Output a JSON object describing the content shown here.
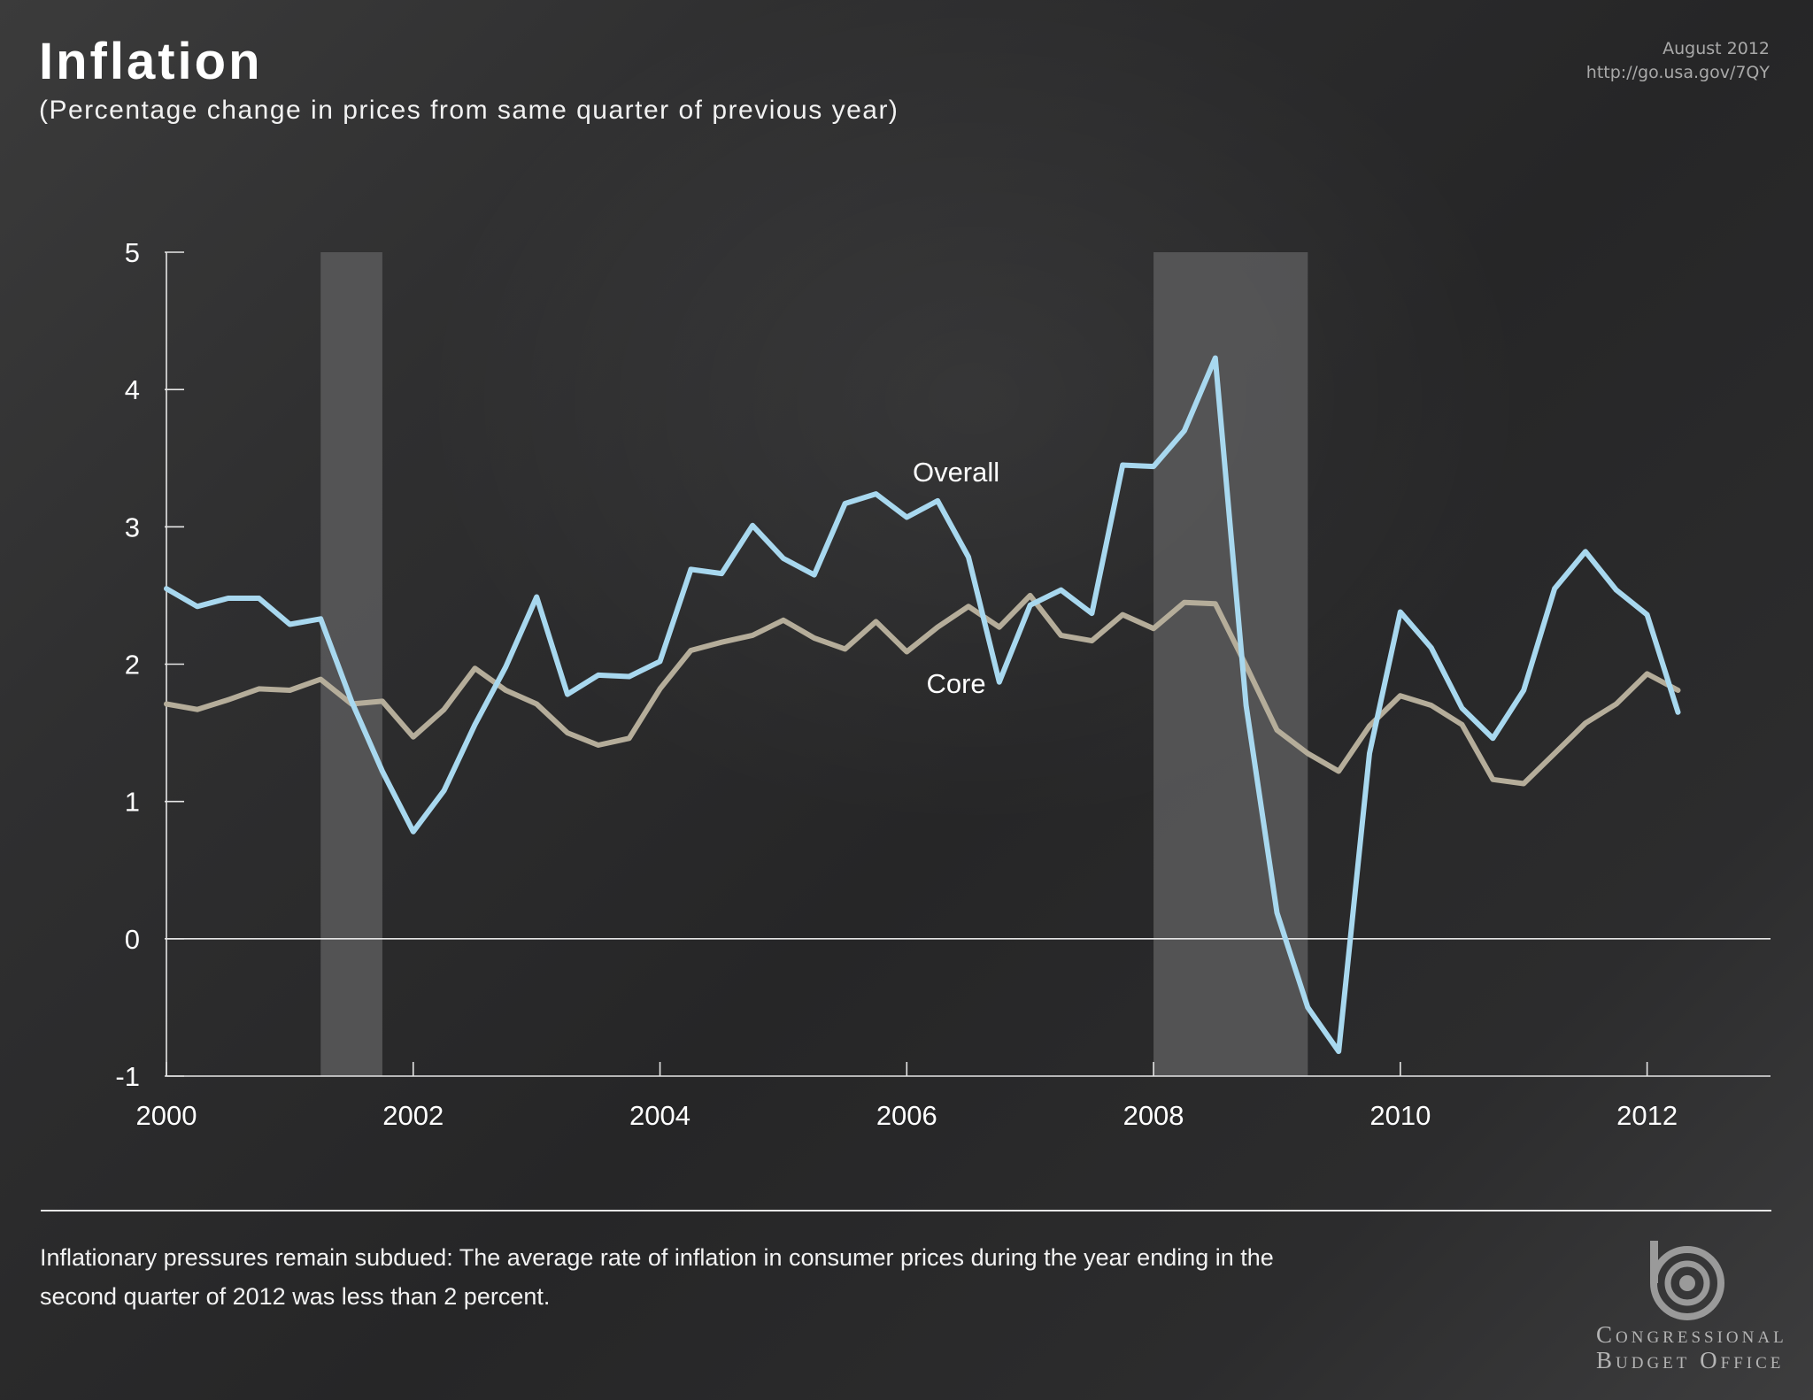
{
  "header": {
    "title": "Inflation",
    "subtitle": "(Percentage change in prices from same quarter of previous year)",
    "date": "August 2012",
    "url": "http://go.usa.gov/7QY"
  },
  "footer": {
    "caption_line1": "Inflationary pressures remain subdued: The average rate of inflation in consumer prices during the year ending in the",
    "caption_line2": "second quarter of 2012 was less than 2 percent.",
    "agency_line1": "Congressional",
    "agency_line2": "Budget Office"
  },
  "colors": {
    "overall": "#a8d8ef",
    "core": "#b5ad9a",
    "recession_shading": "#5a5a5c",
    "axis": "#e6e6e6"
  },
  "chart_data": {
    "type": "line",
    "title": "Inflation",
    "subtitle": "(Percentage change in prices from same quarter of previous year)",
    "xlabel": "",
    "ylabel": "",
    "xlim": [
      2000.0,
      2013.0
    ],
    "ylim": [
      -1,
      5
    ],
    "yticks": [
      -1,
      0,
      1,
      2,
      3,
      4,
      5
    ],
    "xticks": [
      "2000",
      "2002",
      "2004",
      "2006",
      "2008",
      "2010",
      "2012"
    ],
    "grid": false,
    "legend": "inline labels",
    "recessions": [
      {
        "start": "2001 Q2",
        "end": "2001 Q4"
      },
      {
        "start": "2008 Q1",
        "end": "2009 Q2"
      }
    ],
    "x": [
      "2000 Q1",
      "2000 Q2",
      "2000 Q3",
      "2000 Q4",
      "2001 Q1",
      "2001 Q2",
      "2001 Q3",
      "2001 Q4",
      "2002 Q1",
      "2002 Q2",
      "2002 Q3",
      "2002 Q4",
      "2003 Q1",
      "2003 Q2",
      "2003 Q3",
      "2003 Q4",
      "2004 Q1",
      "2004 Q2",
      "2004 Q3",
      "2004 Q4",
      "2005 Q1",
      "2005 Q2",
      "2005 Q3",
      "2005 Q4",
      "2006 Q1",
      "2006 Q2",
      "2006 Q3",
      "2006 Q4",
      "2007 Q1",
      "2007 Q2",
      "2007 Q3",
      "2007 Q4",
      "2008 Q1",
      "2008 Q2",
      "2008 Q3",
      "2008 Q4",
      "2009 Q1",
      "2009 Q2",
      "2009 Q3",
      "2009 Q4",
      "2010 Q1",
      "2010 Q2",
      "2010 Q3",
      "2010 Q4",
      "2011 Q1",
      "2011 Q2",
      "2011 Q3",
      "2011 Q4",
      "2012 Q1",
      "2012 Q2"
    ],
    "series": [
      {
        "name": "Overall",
        "values": [
          2.55,
          2.42,
          2.48,
          2.48,
          2.29,
          2.33,
          1.73,
          1.22,
          0.78,
          1.08,
          1.56,
          1.98,
          2.49,
          1.78,
          1.92,
          1.91,
          2.02,
          2.69,
          2.66,
          3.01,
          2.77,
          2.65,
          3.17,
          3.24,
          3.07,
          3.19,
          2.78,
          1.87,
          2.43,
          2.54,
          2.37,
          3.45,
          3.44,
          3.7,
          4.23,
          1.7,
          0.19,
          -0.5,
          -0.82,
          1.35,
          2.38,
          2.12,
          1.68,
          1.46,
          1.81,
          2.55,
          2.82,
          2.54,
          2.36,
          1.65
        ]
      },
      {
        "name": "Core",
        "values": [
          1.71,
          1.67,
          1.74,
          1.82,
          1.81,
          1.89,
          1.71,
          1.73,
          1.47,
          1.67,
          1.97,
          1.81,
          1.71,
          1.5,
          1.41,
          1.46,
          1.82,
          2.1,
          2.16,
          2.21,
          2.32,
          2.19,
          2.11,
          2.31,
          2.09,
          2.27,
          2.42,
          2.27,
          2.5,
          2.21,
          2.17,
          2.36,
          2.26,
          2.45,
          2.44,
          1.99,
          1.52,
          1.35,
          1.22,
          1.55,
          1.77,
          1.7,
          1.56,
          1.16,
          1.13,
          1.35,
          1.57,
          1.71,
          1.93,
          1.81
        ]
      }
    ]
  }
}
